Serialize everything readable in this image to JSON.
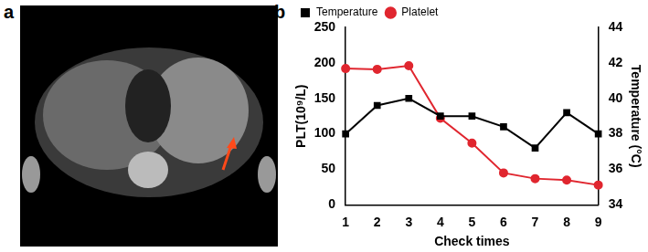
{
  "panel_labels": [
    "a",
    "b"
  ],
  "chart_data": {
    "type": "line",
    "x_label": "Check times",
    "y_label": "PLT(10⁹/L)",
    "y2_label": "Temperature (°C)",
    "categories": [
      "1",
      "2",
      "3",
      "4",
      "5",
      "6",
      "7",
      "8",
      "9"
    ],
    "series": [
      {
        "name": "Temperature",
        "color": "#000000",
        "marker": "square",
        "axis": "y2",
        "values": [
          38,
          39.6,
          40,
          39,
          39,
          38.4,
          37.2,
          39.2,
          38
        ]
      },
      {
        "name": "Platelet",
        "color": "#e0262f",
        "marker": "circle",
        "values": [
          192,
          191,
          196,
          122,
          87,
          45,
          37,
          35,
          28
        ]
      }
    ],
    "ylim": [
      0,
      250
    ],
    "yticks": [
      0,
      50,
      100,
      150,
      200,
      250
    ],
    "y2lim": [
      34,
      44
    ],
    "y2ticks": [
      34,
      36,
      38,
      40,
      42,
      44
    ],
    "grid": false,
    "legend": "top"
  }
}
